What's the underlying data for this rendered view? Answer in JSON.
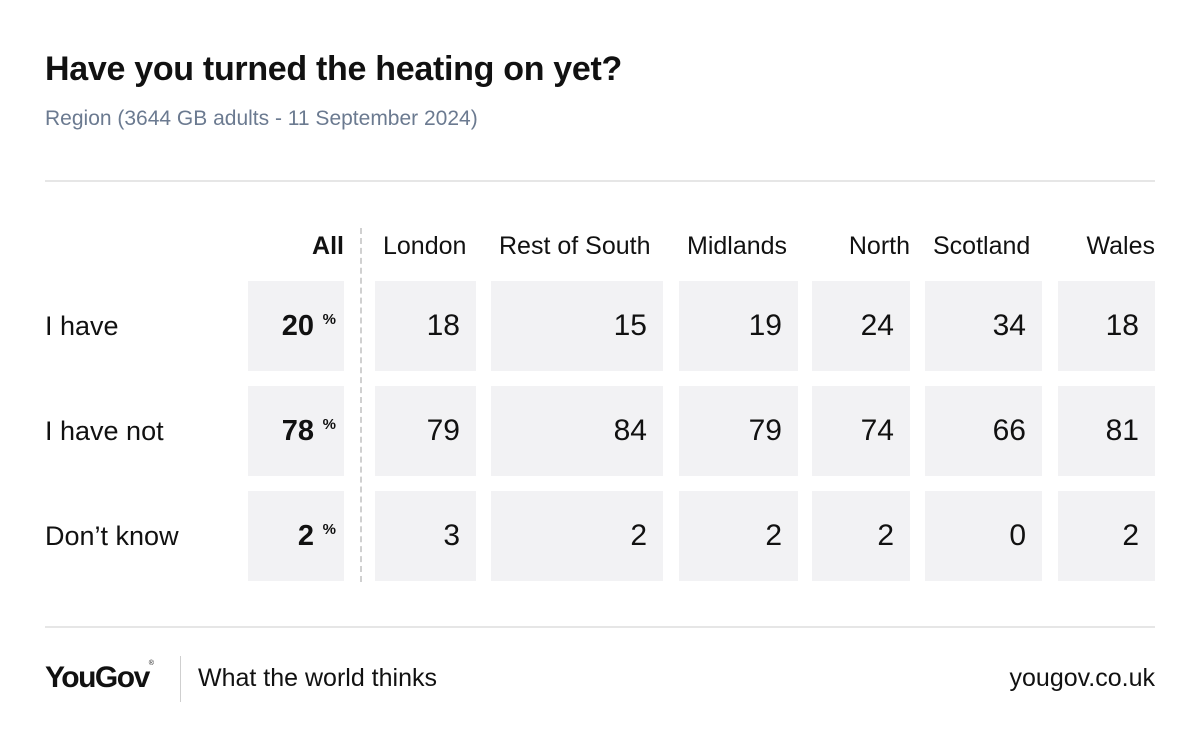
{
  "title": "Have you turned the heating on yet?",
  "subtitle": "Region (3644 GB adults - 11 September 2024)",
  "footer": {
    "logo": "YouGov",
    "logo_mark": "®",
    "tagline": "What the world thinks",
    "site": "yougov.co.uk"
  },
  "chart_data": {
    "type": "table",
    "title": "Have you turned the heating on yet?",
    "subtitle": "Region (3644 GB adults - 11 September 2024)",
    "columns": [
      "All",
      "London",
      "Rest of South",
      "Midlands",
      "North",
      "Scotland",
      "Wales"
    ],
    "unit": "%",
    "rows": [
      {
        "label": "I have",
        "values": [
          20,
          18,
          15,
          19,
          24,
          34,
          18
        ]
      },
      {
        "label": "I have not",
        "values": [
          78,
          79,
          84,
          79,
          74,
          66,
          81
        ]
      },
      {
        "label": "Don’t know",
        "values": [
          2,
          3,
          2,
          2,
          2,
          0,
          2
        ]
      }
    ]
  }
}
